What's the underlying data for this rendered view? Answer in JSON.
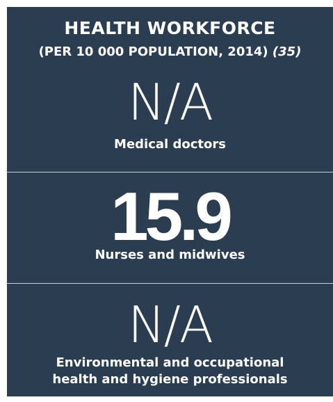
{
  "header": {
    "title": "HEALTH WORKFORCE",
    "subtitle": "(PER 10 000 POPULATION, 2014)",
    "reference": "(35)"
  },
  "panels": [
    {
      "value": "N/A",
      "label": "Medical doctors"
    },
    {
      "value": "15.9",
      "label": "Nurses and midwives"
    },
    {
      "value": "N/A",
      "label": "Environmental and occupational health and hygiene professionals"
    }
  ]
}
